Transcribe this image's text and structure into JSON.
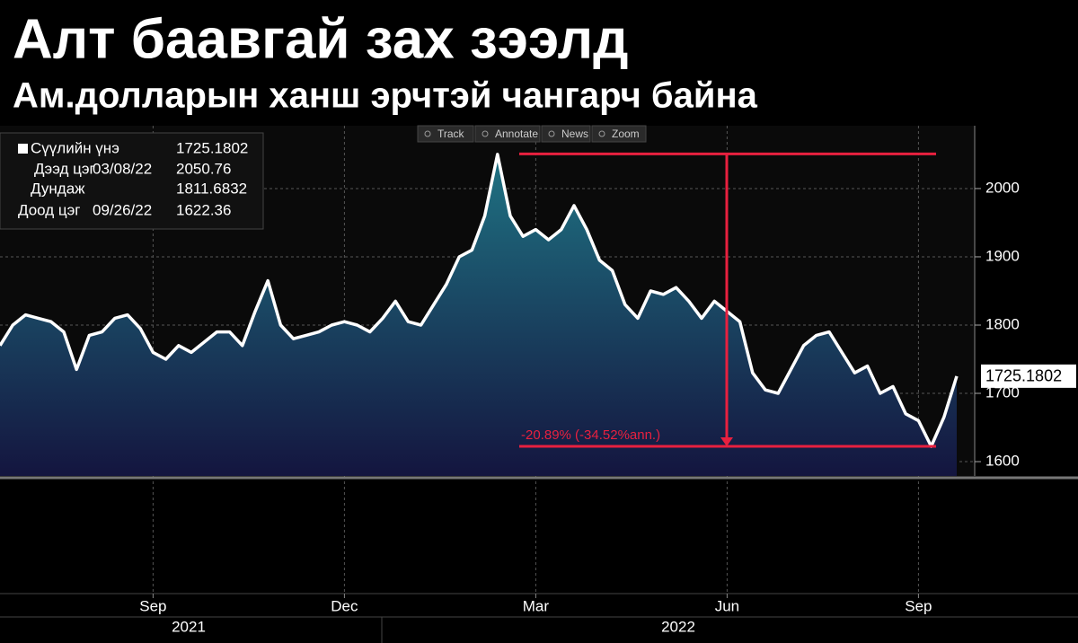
{
  "chart_data": {
    "type": "area",
    "title": "Алт баавгай зах зээлд",
    "subtitle": "Ам.долларын ханш эрчтэй чангарч байна",
    "toolbar": [
      "Track",
      "Annotate",
      "News",
      "Zoom"
    ],
    "legend": [
      {
        "name": "Сүүлийн үнэ",
        "value": 1725.1802
      },
      {
        "name": "Дээд цэг",
        "date": "03/08/22",
        "value": 2050.76
      },
      {
        "name": "Дундаж",
        "value": 1811.6832
      },
      {
        "name": "Доод цэг",
        "date": "09/26/22",
        "value": 1622.36
      }
    ],
    "annotation": "-20.89% (-34.52%ann.)",
    "categories": [
      null,
      null,
      null,
      null,
      null,
      null,
      null,
      null,
      null,
      null,
      null,
      null,
      "Sep",
      null,
      null,
      null,
      null,
      null,
      null,
      null,
      null,
      null,
      null,
      null,
      null,
      null,
      null,
      "Dec",
      null,
      null,
      null,
      null,
      null,
      null,
      null,
      null,
      null,
      null,
      null,
      null,
      null,
      null,
      "Mar",
      null,
      null,
      null,
      null,
      null,
      null,
      null,
      null,
      null,
      null,
      null,
      null,
      null,
      null,
      "Jun",
      null,
      null,
      null,
      null,
      null,
      null,
      null,
      null,
      null,
      null,
      null,
      null,
      null,
      null,
      "Sep",
      null,
      null,
      null
    ],
    "year_labels": [
      "2021",
      "2022"
    ],
    "series": [
      {
        "color": "#ffffff",
        "values": [
          1770,
          1800,
          1815,
          1810,
          1805,
          1790,
          1735,
          1785,
          1790,
          1810,
          1815,
          1795,
          1760,
          1750,
          1770,
          1760,
          1775,
          1790,
          1790,
          1770,
          1820,
          1865,
          1800,
          1780,
          1785,
          1790,
          1800,
          1805,
          1800,
          1790,
          1810,
          1835,
          1805,
          1800,
          1830,
          1860,
          1900,
          1910,
          1960,
          2050,
          1960,
          1930,
          1940,
          1925,
          1940,
          1975,
          1940,
          1895,
          1880,
          1830,
          1810,
          1850,
          1845,
          1855,
          1835,
          1810,
          1835,
          1820,
          1805,
          1730,
          1705,
          1700,
          1735,
          1770,
          1785,
          1790,
          1760,
          1730,
          1740,
          1700,
          1710,
          1670,
          1660,
          1622.36,
          1665,
          1725.1802
        ]
      }
    ],
    "ylim": [
      1579,
      2092
    ],
    "yticks": [
      1600,
      1700,
      1800,
      1900,
      2000
    ],
    "grid": true,
    "marker_color": "#e8203f"
  }
}
